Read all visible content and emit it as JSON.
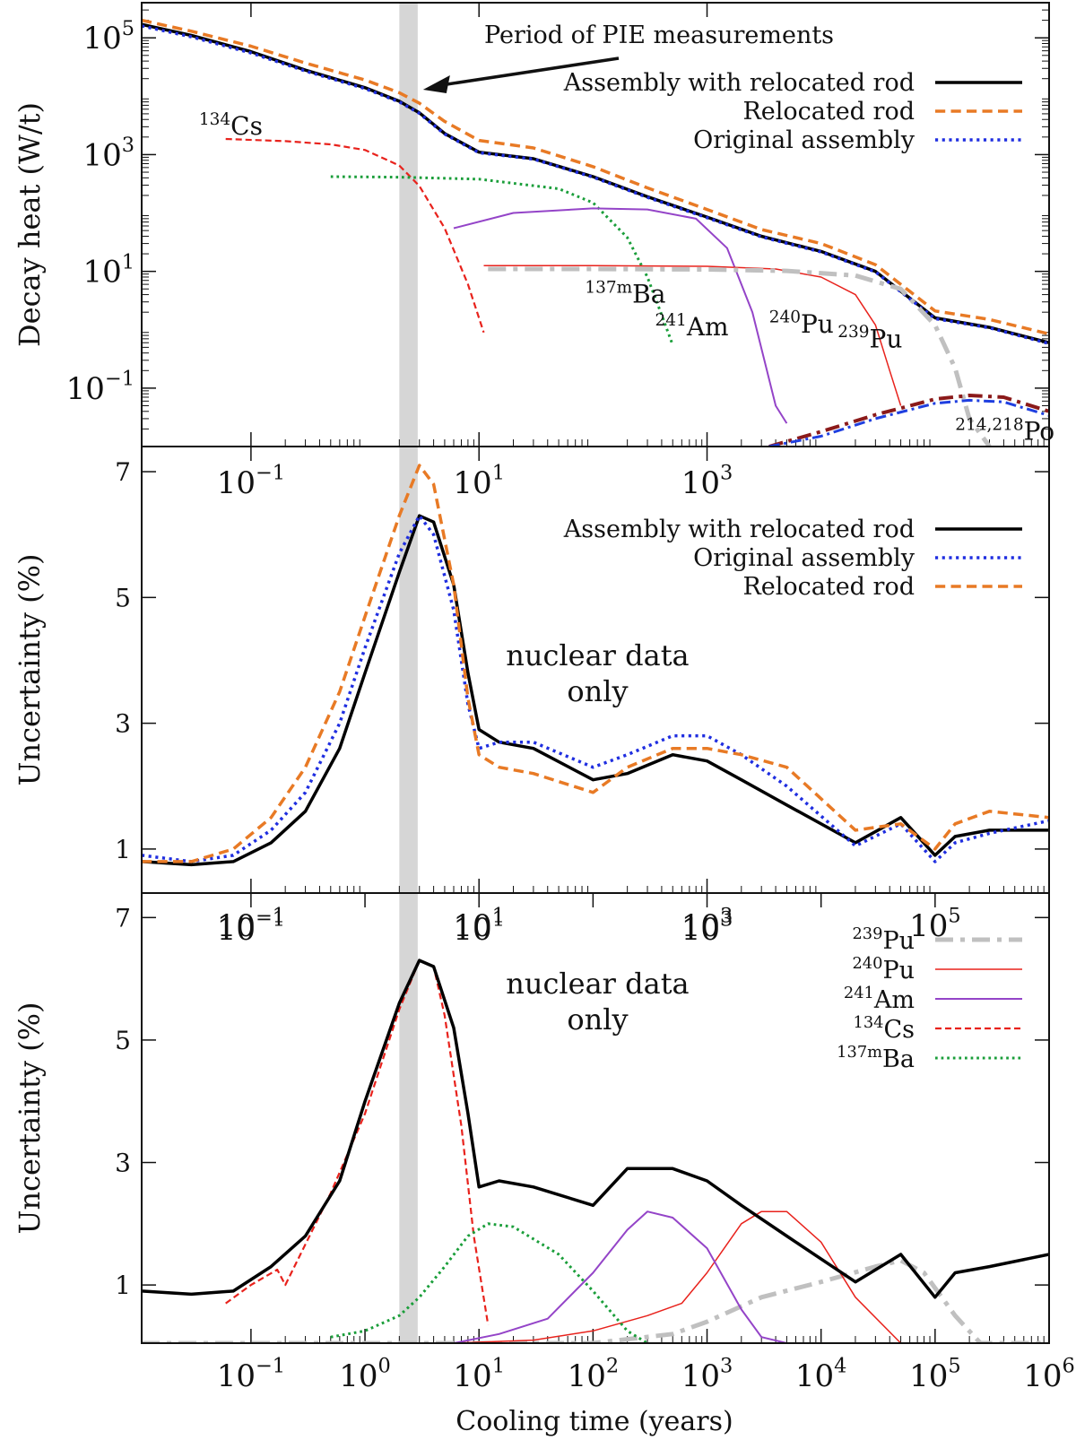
{
  "figure": {
    "xlabel": "Cooling time (years)",
    "pie_period_label": "Period of PIE measurements",
    "pie_period_range": [
      2.0,
      2.9
    ]
  },
  "chart_data": [
    {
      "type": "line",
      "title": "",
      "ylabel": "Decay heat (W/t)",
      "xlabel": "",
      "xscale": "log",
      "yscale": "log",
      "xlim": [
        0.011,
        1000000
      ],
      "ylim": [
        0.01,
        400000
      ],
      "xticks": [
        {
          "v": 0.1,
          "b": "10",
          "e": "−1"
        },
        {
          "v": 10,
          "b": "10",
          "e": "1"
        },
        {
          "v": 1000,
          "b": "10",
          "e": "3"
        }
      ],
      "yticks": [
        {
          "v": 100000,
          "b": "10",
          "e": "5"
        },
        {
          "v": 1000,
          "b": "10",
          "e": "3"
        },
        {
          "v": 10,
          "b": "10",
          "e": "1"
        },
        {
          "v": 0.1,
          "b": "10",
          "e": "−1"
        }
      ],
      "legend_position": "top-right",
      "legend": [
        "Assembly with relocated rod",
        "Relocated rod",
        "Original assembly"
      ],
      "series": [
        {
          "name": "Assembly with relocated rod",
          "color": "#000000",
          "style": "solid",
          "width": 3.5,
          "in_legend": true,
          "x": [
            0.011,
            0.03,
            0.1,
            0.3,
            1,
            2,
            3,
            5,
            10,
            30,
            100,
            300,
            1000,
            3000,
            10000,
            30000,
            100000,
            300000,
            1000000
          ],
          "y": [
            170000,
            110000,
            58000,
            28000,
            14000,
            8200,
            5200,
            2300,
            1100,
            850,
            420,
            190,
            85,
            40,
            22,
            10,
            1.6,
            1.1,
            0.6
          ]
        },
        {
          "name": "Relocated rod",
          "color": "#e87a25",
          "style": "dash",
          "width": 3.5,
          "in_legend": true,
          "x": [
            0.011,
            0.03,
            0.1,
            0.3,
            1,
            2,
            3,
            5,
            10,
            30,
            100,
            300,
            1000,
            3000,
            10000,
            30000,
            100000,
            300000,
            1000000
          ],
          "y": [
            200000,
            130000,
            72000,
            37000,
            19000,
            11500,
            7600,
            3700,
            1750,
            1300,
            620,
            270,
            115,
            52,
            30,
            13,
            2.1,
            1.5,
            0.85
          ]
        },
        {
          "name": "Original assembly",
          "color": "#1f2ee0",
          "style": "dot",
          "width": 3.5,
          "in_legend": true,
          "x": [
            0.011,
            0.03,
            0.1,
            0.3,
            1,
            2,
            3,
            5,
            10,
            30,
            100,
            300,
            1000,
            3000,
            10000,
            30000,
            100000,
            300000,
            1000000
          ],
          "y": [
            160000,
            104000,
            55000,
            27000,
            13500,
            8000,
            5100,
            2250,
            1080,
            840,
            410,
            185,
            83,
            39,
            21.5,
            9.8,
            1.55,
            1.08,
            0.58
          ]
        },
        {
          "name": "134Cs",
          "color": "#e8221c",
          "style": "dash",
          "width": 2.2,
          "in_legend": false,
          "x": [
            0.06,
            0.2,
            0.5,
            1,
            2,
            3,
            5,
            8,
            11
          ],
          "y": [
            1850,
            1700,
            1500,
            1200,
            650,
            290,
            55,
            6,
            0.9
          ]
        },
        {
          "name": "137mBa",
          "color": "#1a9e3a",
          "style": "dot",
          "width": 3,
          "in_legend": false,
          "x": [
            0.5,
            2,
            10,
            50,
            100,
            200,
            300,
            400,
            500
          ],
          "y": [
            420,
            410,
            380,
            260,
            150,
            38,
            8,
            1.8,
            0.55
          ]
        },
        {
          "name": "241Am",
          "color": "#9444c8",
          "style": "solid",
          "width": 2,
          "in_legend": false,
          "x": [
            6,
            20,
            100,
            300,
            800,
            1500,
            2500,
            4000,
            5000
          ],
          "y": [
            55,
            100,
            120,
            115,
            80,
            25,
            2,
            0.05,
            0.025
          ]
        },
        {
          "name": "240Pu",
          "color": "#e8221c",
          "style": "solid",
          "width": 1.5,
          "in_legend": false,
          "x": [
            11,
            100,
            1000,
            4000,
            10000,
            20000,
            30000,
            40000,
            50000
          ],
          "y": [
            12.5,
            12.5,
            12.2,
            11,
            8,
            4,
            1.2,
            0.2,
            0.05
          ]
        },
        {
          "name": "239Pu",
          "color": "#c0c0c0",
          "style": "dashdot",
          "width": 5,
          "in_legend": false,
          "x": [
            12,
            100,
            1000,
            5000,
            20000,
            50000,
            100000,
            150000,
            200000,
            300000
          ],
          "y": [
            11,
            11,
            10.8,
            10.2,
            8.5,
            5,
            1.2,
            0.22,
            0.03,
            0.008
          ]
        },
        {
          "name": "214Po",
          "color": "#8b1a1a",
          "style": "dashdot",
          "width": 4,
          "in_legend": false,
          "x": [
            3500,
            10000,
            30000,
            100000,
            200000,
            400000,
            1000000
          ],
          "y": [
            0.01,
            0.018,
            0.035,
            0.065,
            0.075,
            0.07,
            0.04
          ]
        },
        {
          "name": "218Po",
          "color": "#1f3fe0",
          "style": "dashdot",
          "width": 3,
          "in_legend": false,
          "x": [
            3500,
            10000,
            30000,
            100000,
            200000,
            400000,
            1000000
          ],
          "y": [
            0.009,
            0.015,
            0.03,
            0.055,
            0.062,
            0.058,
            0.034
          ]
        }
      ],
      "annotations": [
        {
          "b": "134",
          "s": "Cs",
          "x": 0.035,
          "y": 2200
        },
        {
          "b": "137m",
          "s": "Ba",
          "x": 85,
          "y": 2.9
        },
        {
          "b": "241",
          "s": "Am",
          "x": 350,
          "y": 0.8
        },
        {
          "b": "240",
          "s": "Pu",
          "x": 3500,
          "y": 0.9
        },
        {
          "b": "239",
          "s": "Pu",
          "x": 14000,
          "y": 0.5
        },
        {
          "b": "214,218",
          "s": "Po",
          "x": 150000,
          "y": 0.013
        }
      ]
    },
    {
      "type": "line",
      "title": "nuclear data only",
      "ylabel": "Uncertainty (%)",
      "xlabel": "",
      "xscale": "log",
      "xlim": [
        0.011,
        1000000
      ],
      "ylim": [
        0.3,
        7.4
      ],
      "xticks": [
        {
          "v": 0.1,
          "b": "10",
          "e": "−1"
        },
        {
          "v": 10,
          "b": "10",
          "e": "1"
        },
        {
          "v": 1000,
          "b": "10",
          "e": "3"
        }
      ],
      "yticks": [
        {
          "v": 7,
          "t": "7"
        },
        {
          "v": 5,
          "t": "5"
        },
        {
          "v": 3,
          "t": "3"
        },
        {
          "v": 1,
          "t": "1"
        }
      ],
      "legend_position": "top-right",
      "legend": [
        "Assembly with relocated rod",
        "Original assembly",
        "Relocated rod"
      ],
      "series": [
        {
          "name": "Assembly with relocated rod",
          "color": "#000000",
          "style": "solid",
          "width": 3.5,
          "in_legend": true,
          "x": [
            0.011,
            0.03,
            0.07,
            0.15,
            0.3,
            0.6,
            1,
            2,
            3,
            4,
            6,
            8,
            10,
            15,
            30,
            100,
            200,
            500,
            1000,
            2000,
            5000,
            20000,
            50000,
            100000,
            150000,
            300000,
            1000000
          ],
          "y": [
            0.8,
            0.75,
            0.8,
            1.1,
            1.6,
            2.6,
            3.8,
            5.4,
            6.3,
            6.2,
            5.2,
            3.8,
            2.9,
            2.7,
            2.6,
            2.1,
            2.2,
            2.5,
            2.4,
            2.1,
            1.7,
            1.1,
            1.5,
            0.9,
            1.2,
            1.3,
            1.3
          ]
        },
        {
          "name": "Original assembly",
          "color": "#1f2ee0",
          "style": "dot",
          "width": 3.5,
          "in_legend": true,
          "x": [
            0.011,
            0.03,
            0.07,
            0.15,
            0.3,
            0.6,
            1,
            2,
            3,
            4,
            6,
            8,
            10,
            15,
            30,
            100,
            200,
            500,
            1000,
            2000,
            5000,
            20000,
            50000,
            100000,
            150000,
            300000,
            1000000
          ],
          "y": [
            0.9,
            0.8,
            0.9,
            1.3,
            1.9,
            3.0,
            4.2,
            5.7,
            6.3,
            6.0,
            4.8,
            3.3,
            2.6,
            2.7,
            2.7,
            2.3,
            2.5,
            2.8,
            2.8,
            2.5,
            2.0,
            1.05,
            1.4,
            0.8,
            1.1,
            1.25,
            1.45
          ]
        },
        {
          "name": "Relocated rod",
          "color": "#e87a25",
          "style": "dash",
          "width": 3.5,
          "in_legend": true,
          "x": [
            0.011,
            0.03,
            0.07,
            0.15,
            0.3,
            0.6,
            1,
            2,
            3,
            4,
            6,
            8,
            10,
            15,
            30,
            100,
            200,
            500,
            1000,
            2000,
            5000,
            20000,
            50000,
            100000,
            150000,
            300000,
            1000000
          ],
          "y": [
            0.8,
            0.8,
            1.0,
            1.5,
            2.3,
            3.5,
            4.7,
            6.3,
            7.1,
            6.8,
            5.2,
            3.4,
            2.5,
            2.3,
            2.2,
            1.9,
            2.3,
            2.6,
            2.6,
            2.5,
            2.3,
            1.3,
            1.4,
            1.0,
            1.4,
            1.6,
            1.5
          ]
        }
      ],
      "annotations": []
    },
    {
      "type": "line",
      "title": "nuclear data only",
      "ylabel": "Uncertainty (%)",
      "xlabel": "Cooling time (years)",
      "xscale": "log",
      "xlim": [
        0.011,
        1000000
      ],
      "ylim": [
        0.05,
        7.4
      ],
      "xticks": [
        {
          "v": 0.1,
          "b": "10",
          "e": "−1"
        },
        {
          "v": 1,
          "b": "10",
          "e": "0"
        },
        {
          "v": 10,
          "b": "10",
          "e": "1"
        },
        {
          "v": 100,
          "b": "10",
          "e": "2"
        },
        {
          "v": 1000,
          "b": "10",
          "e": "3"
        },
        {
          "v": 10000,
          "b": "10",
          "e": "4"
        },
        {
          "v": 100000,
          "b": "10",
          "e": "5"
        },
        {
          "v": 1000000,
          "b": "10",
          "e": "6"
        }
      ],
      "xticks_top": [
        {
          "v": 0.1,
          "b": "10",
          "e": "−1"
        },
        {
          "v": 10,
          "b": "10",
          "e": "1"
        },
        {
          "v": 1000,
          "b": "10",
          "e": "3"
        },
        {
          "v": 100000,
          "b": "10",
          "e": "5"
        }
      ],
      "yticks": [
        {
          "v": 7,
          "t": "7"
        },
        {
          "v": 5,
          "t": "5"
        },
        {
          "v": 3,
          "t": "3"
        },
        {
          "v": 1,
          "t": "1"
        }
      ],
      "legend_position": "top-right",
      "legend": [
        "239Pu",
        "240Pu",
        "241Am",
        "134Cs",
        "137mBa"
      ],
      "series": [
        {
          "name": "239Pu",
          "color": "#c0c0c0",
          "style": "dashdot",
          "width": 5,
          "in_legend": true,
          "x": [
            0.011,
            100,
            500,
            1000,
            3000,
            10000,
            30000,
            50000,
            80000,
            150000,
            250000,
            1000000
          ],
          "y": [
            0.05,
            0.05,
            0.2,
            0.4,
            0.8,
            1.05,
            1.3,
            1.4,
            1.2,
            0.5,
            0.05,
            0.05
          ]
        },
        {
          "name": "240Pu",
          "color": "#e8221c",
          "style": "solid",
          "width": 1.5,
          "in_legend": true,
          "x": [
            6,
            30,
            100,
            300,
            600,
            1000,
            2000,
            3000,
            5000,
            10000,
            20000,
            50000
          ],
          "y": [
            0.05,
            0.1,
            0.25,
            0.5,
            0.7,
            1.2,
            2.0,
            2.2,
            2.2,
            1.7,
            0.8,
            0.05
          ]
        },
        {
          "name": "241Am",
          "color": "#9444c8",
          "style": "solid",
          "width": 2,
          "in_legend": true,
          "x": [
            6,
            15,
            40,
            100,
            200,
            300,
            500,
            1000,
            2000,
            3000,
            5000
          ],
          "y": [
            0.05,
            0.2,
            0.45,
            1.2,
            1.9,
            2.2,
            2.1,
            1.6,
            0.6,
            0.15,
            0.05
          ]
        },
        {
          "name": "134Cs",
          "color": "#e8221c",
          "style": "dash",
          "width": 2.2,
          "in_legend": true,
          "x": [
            0.06,
            0.1,
            0.17,
            0.2,
            0.5,
            1,
            2,
            3,
            4,
            5,
            7,
            9,
            12
          ],
          "y": [
            0.7,
            1.0,
            1.25,
            1.0,
            2.5,
            3.8,
            5.5,
            6.3,
            6.2,
            5.4,
            3.6,
            1.8,
            0.35
          ]
        },
        {
          "name": "137mBa",
          "color": "#1a9e3a",
          "style": "dot",
          "width": 3,
          "in_legend": true,
          "x": [
            0.5,
            1,
            2,
            3,
            5,
            8,
            12,
            20,
            50,
            100,
            200,
            300
          ],
          "y": [
            0.15,
            0.25,
            0.5,
            0.8,
            1.3,
            1.8,
            2.0,
            1.95,
            1.5,
            0.9,
            0.25,
            0.05
          ]
        },
        {
          "name": "Total uncertainty",
          "color": "#000000",
          "style": "solid",
          "width": 3.5,
          "in_legend": false,
          "x": [
            0.011,
            0.03,
            0.07,
            0.15,
            0.3,
            0.6,
            1,
            2,
            3,
            4,
            6,
            8,
            10,
            15,
            30,
            100,
            200,
            500,
            1000,
            2000,
            5000,
            20000,
            50000,
            100000,
            150000,
            300000,
            1000000
          ],
          "y": [
            0.9,
            0.85,
            0.9,
            1.3,
            1.8,
            2.7,
            4.0,
            5.6,
            6.3,
            6.2,
            5.2,
            3.8,
            2.6,
            2.7,
            2.6,
            2.3,
            2.9,
            2.9,
            2.7,
            2.3,
            1.8,
            1.05,
            1.5,
            0.8,
            1.2,
            1.3,
            1.5
          ]
        }
      ],
      "annotations": []
    }
  ]
}
